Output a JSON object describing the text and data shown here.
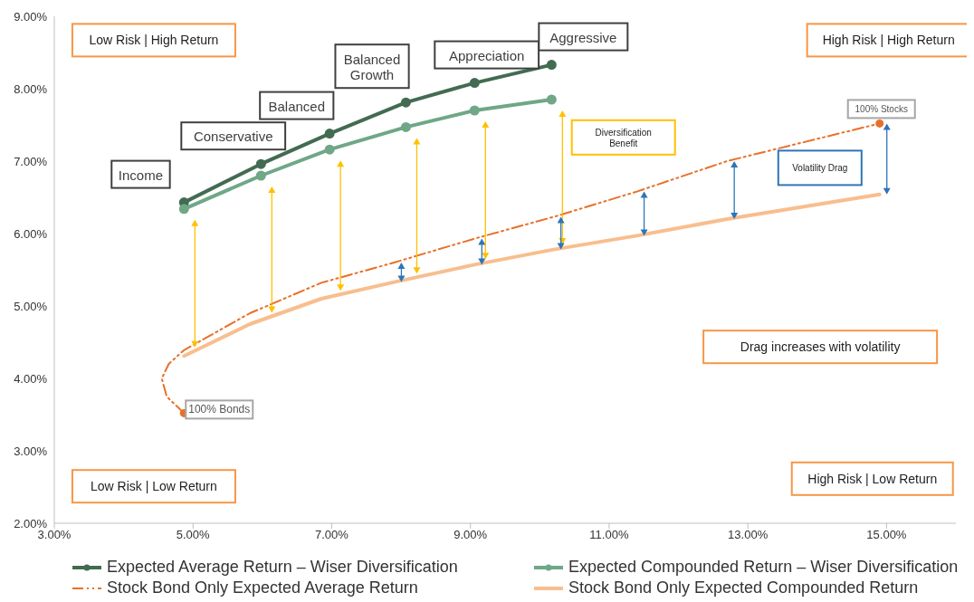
{
  "chart_data": {
    "type": "line",
    "xlim": [
      3,
      16
    ],
    "ylim": [
      2,
      9
    ],
    "xticks": [
      {
        "value": 3,
        "label": "3.00%"
      },
      {
        "value": 5,
        "label": "5.00%"
      },
      {
        "value": 7,
        "label": "7.00%"
      },
      {
        "value": 9,
        "label": "9.00%"
      },
      {
        "value": 11,
        "label": "11.00%"
      },
      {
        "value": 13,
        "label": "13.00%"
      },
      {
        "value": 15,
        "label": "15.00%"
      }
    ],
    "yticks": [
      {
        "value": 2,
        "label": "2.00%"
      },
      {
        "value": 3,
        "label": "3.00%"
      },
      {
        "value": 4,
        "label": "4.00%"
      },
      {
        "value": 5,
        "label": "5.00%"
      },
      {
        "value": 6,
        "label": "6.00%"
      },
      {
        "value": 7,
        "label": "7.00%"
      },
      {
        "value": 8,
        "label": "8.00%"
      },
      {
        "value": 9,
        "label": "9.00%"
      }
    ],
    "grid": false,
    "legend": "bottom",
    "series": [
      {
        "name": "Expected Average Return – Wiser Diversification",
        "color": "#436b52",
        "marker": "circle",
        "line_style": "solid",
        "x": [
          4.87,
          5.98,
          6.97,
          8.07,
          9.06,
          10.17
        ],
        "values": [
          6.43,
          6.96,
          7.38,
          7.81,
          8.08,
          8.33
        ]
      },
      {
        "name": "Expected Compounded Return – Wiser Diversification",
        "color": "#6fa787",
        "marker": "circle",
        "line_style": "solid",
        "x": [
          4.87,
          5.98,
          6.97,
          8.07,
          9.06,
          10.17
        ],
        "values": [
          6.34,
          6.8,
          7.16,
          7.47,
          7.7,
          7.85
        ]
      },
      {
        "name": "Stock Bond Only Expected Average Return",
        "color": "#e8702a",
        "marker": "none",
        "line_style": "dashed",
        "x": [
          4.87,
          4.62,
          4.55,
          4.65,
          4.87,
          5.82,
          6.85,
          7.9,
          9.06,
          10.2,
          11.4,
          12.7,
          14.9
        ],
        "values": [
          3.52,
          3.75,
          4.0,
          4.2,
          4.39,
          4.9,
          5.32,
          5.6,
          5.93,
          6.23,
          6.58,
          7.0,
          7.52
        ]
      },
      {
        "name": "Stock Bond Only Expected Compounded Return",
        "color": "#f8be8e",
        "marker": "none",
        "line_style": "solid",
        "x": [
          4.87,
          5.82,
          6.85,
          7.9,
          9.06,
          10.2,
          11.4,
          12.7,
          14.9
        ],
        "values": [
          4.31,
          4.75,
          5.1,
          5.33,
          5.57,
          5.78,
          5.97,
          6.2,
          6.54
        ]
      },
      {
        "type": "scatter",
        "color": "#e8702a",
        "marker": "circle",
        "x": [
          4.87,
          14.9
        ],
        "values": [
          3.52,
          7.52
        ]
      }
    ],
    "annotations": [
      "Low Risk | High Return",
      "High Risk | High Return",
      "Low Risk | Low Return",
      "High Risk | Low Return",
      "Drag increases with volatility",
      "Diversification Benefit",
      "Volatility Drag",
      {
        "text": "Income",
        "x": 4.87,
        "y": 6.43
      },
      {
        "text": "Conservative",
        "x": 5.98,
        "y": 6.96
      },
      {
        "text": "Balanced",
        "x": 6.97,
        "y": 7.38
      },
      {
        "text": "Balanced Growth",
        "x": 8.07,
        "y": 7.81
      },
      {
        "text": "Appreciation",
        "x": 9.06,
        "y": 8.08
      },
      {
        "text": "Aggressive",
        "x": 10.17,
        "y": 8.33
      },
      {
        "text": "100% Stocks",
        "x": 14.9,
        "y": 7.52
      },
      {
        "text": "100% Bonds",
        "x": 4.87,
        "y": 3.52
      }
    ]
  }
}
